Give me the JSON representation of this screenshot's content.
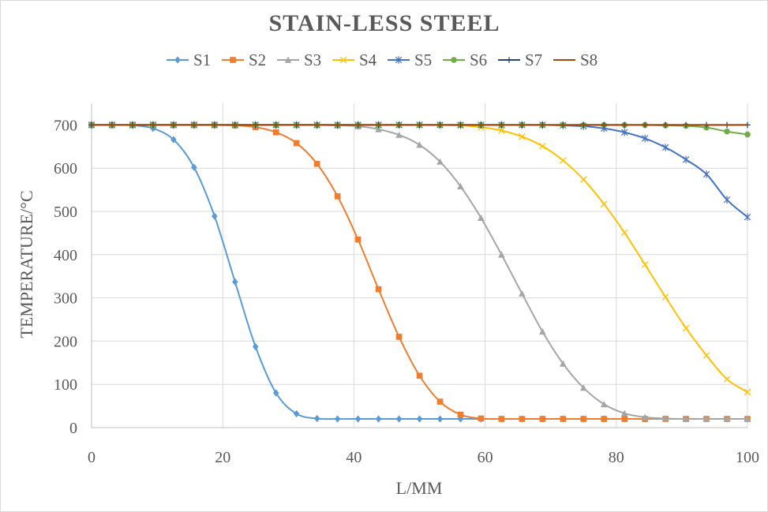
{
  "chart_data": {
    "type": "line",
    "title": "STAIN-LESS STEEL",
    "xlabel": "L/MM",
    "ylabel": "TEMPERATURE/°C",
    "xlim": [
      0,
      100
    ],
    "ylim": [
      0,
      750
    ],
    "xticks": [
      0,
      20,
      40,
      60,
      80,
      100
    ],
    "yticks": [
      0,
      100,
      200,
      300,
      400,
      500,
      600,
      700
    ],
    "grid": "vertical and horizontal",
    "legend_position": "top",
    "x": [
      0,
      3.125,
      6.25,
      9.375,
      12.5,
      15.625,
      18.75,
      21.875,
      25,
      28.125,
      31.25,
      34.375,
      37.5,
      40.625,
      43.75,
      46.875,
      50,
      53.125,
      56.25,
      59.375,
      62.5,
      65.625,
      68.75,
      71.875,
      75,
      78.125,
      81.25,
      84.375,
      87.5,
      90.625,
      93.75,
      96.875,
      100
    ],
    "series": [
      {
        "name": "S1",
        "color": "#5b9bd5",
        "marker": "diamond",
        "values": [
          700,
          700,
          699,
          692,
          666,
          602,
          489,
          337,
          187,
          80,
          32,
          21,
          20,
          20,
          20,
          20,
          20,
          20,
          20,
          20,
          20,
          20,
          20,
          20,
          20,
          20,
          20,
          20,
          20,
          20,
          20,
          20,
          20
        ]
      },
      {
        "name": "S2",
        "color": "#ed7d31",
        "marker": "square",
        "values": [
          700,
          700,
          700,
          700,
          700,
          700,
          700,
          699,
          695,
          683,
          658,
          610,
          535,
          435,
          320,
          210,
          120,
          60,
          30,
          21,
          20,
          20,
          20,
          20,
          20,
          20,
          20,
          20,
          20,
          20,
          20,
          20,
          20
        ]
      },
      {
        "name": "S3",
        "color": "#a5a5a5",
        "marker": "triangle",
        "values": [
          700,
          700,
          700,
          700,
          700,
          700,
          700,
          700,
          700,
          700,
          700,
          700,
          699,
          697,
          690,
          677,
          654,
          615,
          558,
          485,
          400,
          310,
          222,
          148,
          92,
          54,
          33,
          24,
          21,
          20,
          20,
          20,
          20
        ]
      },
      {
        "name": "S4",
        "color": "#ffc000",
        "marker": "x",
        "values": [
          700,
          700,
          700,
          700,
          700,
          700,
          700,
          700,
          700,
          700,
          700,
          700,
          700,
          700,
          700,
          700,
          700,
          700,
          699,
          695,
          687,
          673,
          651,
          618,
          574,
          517,
          451,
          377,
          302,
          230,
          167,
          112,
          82
        ]
      },
      {
        "name": "S5",
        "color": "#4472c4",
        "marker": "star",
        "values": [
          700,
          700,
          700,
          700,
          700,
          700,
          700,
          700,
          700,
          700,
          700,
          700,
          700,
          700,
          700,
          700,
          700,
          700,
          700,
          700,
          700,
          700,
          700,
          699,
          697,
          692,
          683,
          669,
          648,
          620,
          586,
          527,
          487
        ]
      },
      {
        "name": "S6",
        "color": "#70ad47",
        "marker": "circle",
        "values": [
          700,
          700,
          700,
          700,
          700,
          700,
          700,
          700,
          700,
          700,
          700,
          700,
          700,
          700,
          700,
          700,
          700,
          700,
          700,
          700,
          700,
          700,
          700,
          700,
          700,
          700,
          700,
          700,
          699,
          698,
          694,
          685,
          678
        ]
      },
      {
        "name": "S7",
        "color": "#264478",
        "marker": "plus",
        "values": [
          700,
          700,
          700,
          700,
          700,
          700,
          700,
          700,
          700,
          700,
          700,
          700,
          700,
          700,
          700,
          700,
          700,
          700,
          700,
          700,
          700,
          700,
          700,
          700,
          700,
          700,
          700,
          700,
          700,
          700,
          700,
          700,
          700
        ]
      },
      {
        "name": "S8",
        "color": "#9e480e",
        "marker": "none",
        "values": [
          700,
          700,
          700,
          700,
          700,
          700,
          700,
          700,
          700,
          700,
          700,
          700,
          700,
          700,
          700,
          700,
          700,
          700,
          700,
          700,
          700,
          700,
          700,
          700,
          700,
          700,
          700,
          700,
          700,
          700,
          700,
          700,
          700
        ]
      }
    ]
  }
}
